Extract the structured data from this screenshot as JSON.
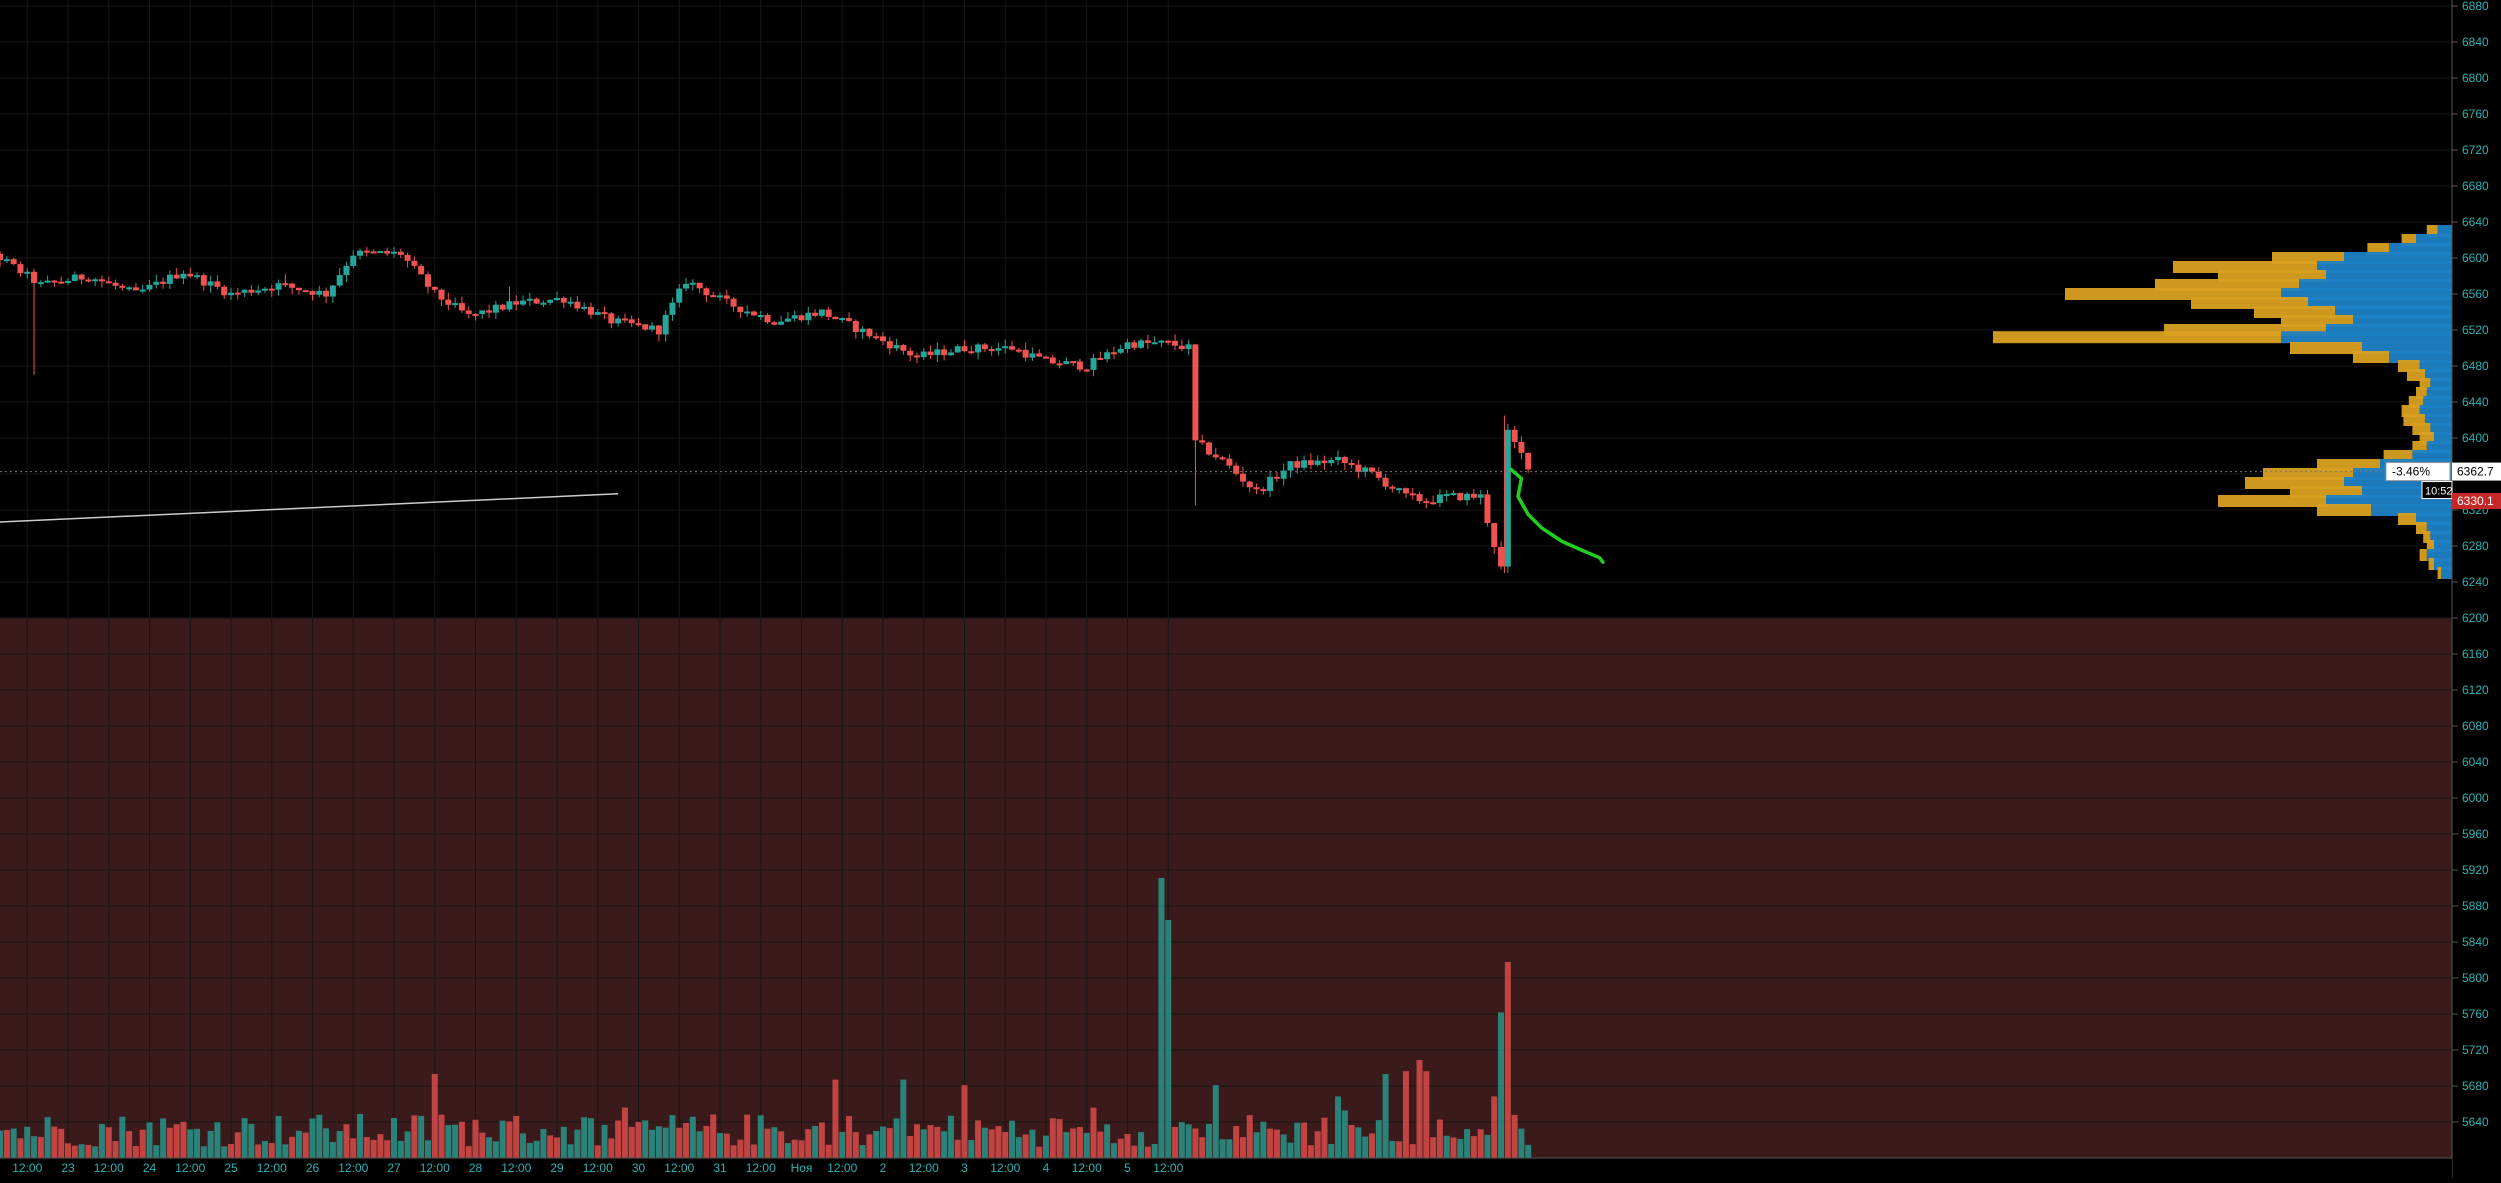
{
  "chart_data": {
    "type": "candlestick",
    "price_axis": {
      "ticks": [
        6880,
        6840,
        6800,
        6760,
        6720,
        6680,
        6640,
        6600,
        6560,
        6520,
        6480,
        6440,
        6400,
        6360,
        6320,
        6280,
        6240,
        6200,
        6160,
        6120,
        6080,
        6040,
        6000,
        5960,
        5920,
        5880,
        5840,
        5800,
        5760,
        5720,
        5680,
        5640
      ],
      "range": [
        5615,
        6885
      ]
    },
    "time_axis": {
      "labels": [
        "12:00",
        "23",
        "12:00",
        "24",
        "12:00",
        "25",
        "12:00",
        "26",
        "12:00",
        "27",
        "12:00",
        "28",
        "12:00",
        "29",
        "12:00",
        "30",
        "12:00",
        "31",
        "12:00",
        "Ноя",
        "12:00",
        "2",
        "12:00",
        "3",
        "12:00",
        "4",
        "12:00",
        "5",
        "12:00"
      ],
      "range_hours": [
        -20,
        164
      ]
    },
    "last_price": 6362.7,
    "last_price_label": "6362.7",
    "change_label": "-3.46%",
    "countdown_label": "10:52",
    "ask_label": "6330.1",
    "trendline": {
      "from": {
        "hours": -24,
        "price": 6306
      },
      "to": {
        "hours": 162,
        "price": 6338
      }
    },
    "candle_anchors": [
      [
        0,
        6595
      ],
      [
        14,
        6605
      ],
      [
        28,
        6570
      ],
      [
        42,
        6580
      ],
      [
        56,
        6560
      ],
      [
        70,
        6585
      ],
      [
        84,
        6560
      ],
      [
        98,
        6570
      ],
      [
        112,
        6560
      ],
      [
        120,
        6605
      ],
      [
        134,
        6605
      ],
      [
        144,
        6560
      ],
      [
        154,
        6535
      ],
      [
        168,
        6550
      ],
      [
        182,
        6555
      ],
      [
        196,
        6530
      ],
      [
        210,
        6520
      ],
      [
        218,
        6575
      ],
      [
        230,
        6550
      ],
      [
        244,
        6530
      ],
      [
        258,
        6540
      ],
      [
        272,
        6515
      ],
      [
        286,
        6490
      ],
      [
        300,
        6500
      ],
      [
        314,
        6500
      ],
      [
        324,
        6485
      ],
      [
        336,
        6480
      ],
      [
        348,
        6505
      ],
      [
        360,
        6505
      ],
      [
        366,
        6500
      ],
      [
        368,
        6395
      ],
      [
        376,
        6375
      ],
      [
        386,
        6340
      ],
      [
        396,
        6370
      ],
      [
        410,
        6375
      ],
      [
        420,
        6360
      ],
      [
        430,
        6335
      ],
      [
        436,
        6330
      ],
      [
        442,
        6335
      ],
      [
        452,
        6335
      ],
      [
        458,
        6255
      ],
      [
        460,
        6405
      ],
      [
        466,
        6370
      ]
    ],
    "wicks": [
      {
        "h": 26,
        "price": 6470
      },
      {
        "h": 100,
        "price": 6582
      },
      {
        "h": 166,
        "price": 6568
      },
      {
        "h": 368,
        "price": 6325
      },
      {
        "h": 459,
        "price": 6425
      },
      {
        "h": 459,
        "price": 6250
      }
    ],
    "volume_spikes": [
      {
        "h": 144,
        "v": 3.0
      },
      {
        "h": 200,
        "v": 1.8
      },
      {
        "h": 262,
        "v": 2.8
      },
      {
        "h": 282,
        "v": 2.8
      },
      {
        "h": 300,
        "v": 2.6
      },
      {
        "h": 338,
        "v": 1.8
      },
      {
        "h": 358,
        "v": 10
      },
      {
        "h": 360,
        "v": 8.5
      },
      {
        "h": 374,
        "v": 2.6
      },
      {
        "h": 410,
        "v": 2.2
      },
      {
        "h": 412,
        "v": 1.7
      },
      {
        "h": 424,
        "v": 3.0
      },
      {
        "h": 430,
        "v": 3.1
      },
      {
        "h": 434,
        "v": 3.5
      },
      {
        "h": 436,
        "v": 3.1
      },
      {
        "h": 456,
        "v": 2.2
      },
      {
        "h": 458,
        "v": 5.2
      },
      {
        "h": 460,
        "v": 7.0
      }
    ],
    "volume_profile": [
      {
        "price": 6630,
        "up": 8,
        "down": 6
      },
      {
        "price": 6620,
        "up": 20,
        "down": 8
      },
      {
        "price": 6610,
        "up": 35,
        "down": 12
      },
      {
        "price": 6600,
        "up": 60,
        "down": 40
      },
      {
        "price": 6590,
        "up": 75,
        "down": 80
      },
      {
        "price": 6580,
        "up": 70,
        "down": 60
      },
      {
        "price": 6570,
        "up": 85,
        "down": 80
      },
      {
        "price": 6560,
        "up": 95,
        "down": 120
      },
      {
        "price": 6550,
        "up": 80,
        "down": 65
      },
      {
        "price": 6540,
        "up": 65,
        "down": 45
      },
      {
        "price": 6530,
        "up": 55,
        "down": 40
      },
      {
        "price": 6520,
        "up": 70,
        "down": 90
      },
      {
        "price": 6512,
        "up": 95,
        "down": 160
      },
      {
        "price": 6500,
        "up": 50,
        "down": 40
      },
      {
        "price": 6490,
        "up": 35,
        "down": 20
      },
      {
        "price": 6480,
        "up": 18,
        "down": 12
      },
      {
        "price": 6470,
        "up": 15,
        "down": 10
      },
      {
        "price": 6460,
        "up": 12,
        "down": 6
      },
      {
        "price": 6450,
        "up": 14,
        "down": 6
      },
      {
        "price": 6440,
        "up": 16,
        "down": 8
      },
      {
        "price": 6430,
        "up": 18,
        "down": 10
      },
      {
        "price": 6420,
        "up": 15,
        "down": 12
      },
      {
        "price": 6410,
        "up": 12,
        "down": 10
      },
      {
        "price": 6400,
        "up": 10,
        "down": 8
      },
      {
        "price": 6390,
        "up": 14,
        "down": 8
      },
      {
        "price": 6380,
        "up": 22,
        "down": 16
      },
      {
        "price": 6370,
        "up": 40,
        "down": 35
      },
      {
        "price": 6360,
        "up": 55,
        "down": 50
      },
      {
        "price": 6350,
        "up": 60,
        "down": 55
      },
      {
        "price": 6340,
        "up": 50,
        "down": 40
      },
      {
        "price": 6330,
        "up": 70,
        "down": 60
      },
      {
        "price": 6320,
        "up": 45,
        "down": 30
      },
      {
        "price": 6310,
        "up": 20,
        "down": 10
      },
      {
        "price": 6300,
        "up": 14,
        "down": 6
      },
      {
        "price": 6290,
        "up": 12,
        "down": 4
      },
      {
        "price": 6280,
        "up": 10,
        "down": 4
      },
      {
        "price": 6270,
        "up": 14,
        "down": 4
      },
      {
        "price": 6260,
        "up": 10,
        "down": 3
      },
      {
        "price": 6250,
        "up": 6,
        "down": 2
      }
    ],
    "drawing_path": [
      [
        461,
        6365
      ],
      [
        464,
        6355
      ],
      [
        463,
        6335
      ],
      [
        466,
        6315
      ],
      [
        470,
        6300
      ],
      [
        476,
        6285
      ],
      [
        482,
        6275
      ],
      [
        487,
        6267
      ],
      [
        488,
        6262
      ]
    ],
    "colors": {
      "up": "#26a69a",
      "down": "#ef5350",
      "grid": "#161616",
      "axis_text": "#2bb3b3",
      "volume_bg": "#3a1a1a",
      "profile_up": "#1e7fc4",
      "profile_down": "#d9a021",
      "drawing": "#22cc22",
      "trendline": "#cccccc",
      "ask_badge": "#c62828"
    }
  }
}
